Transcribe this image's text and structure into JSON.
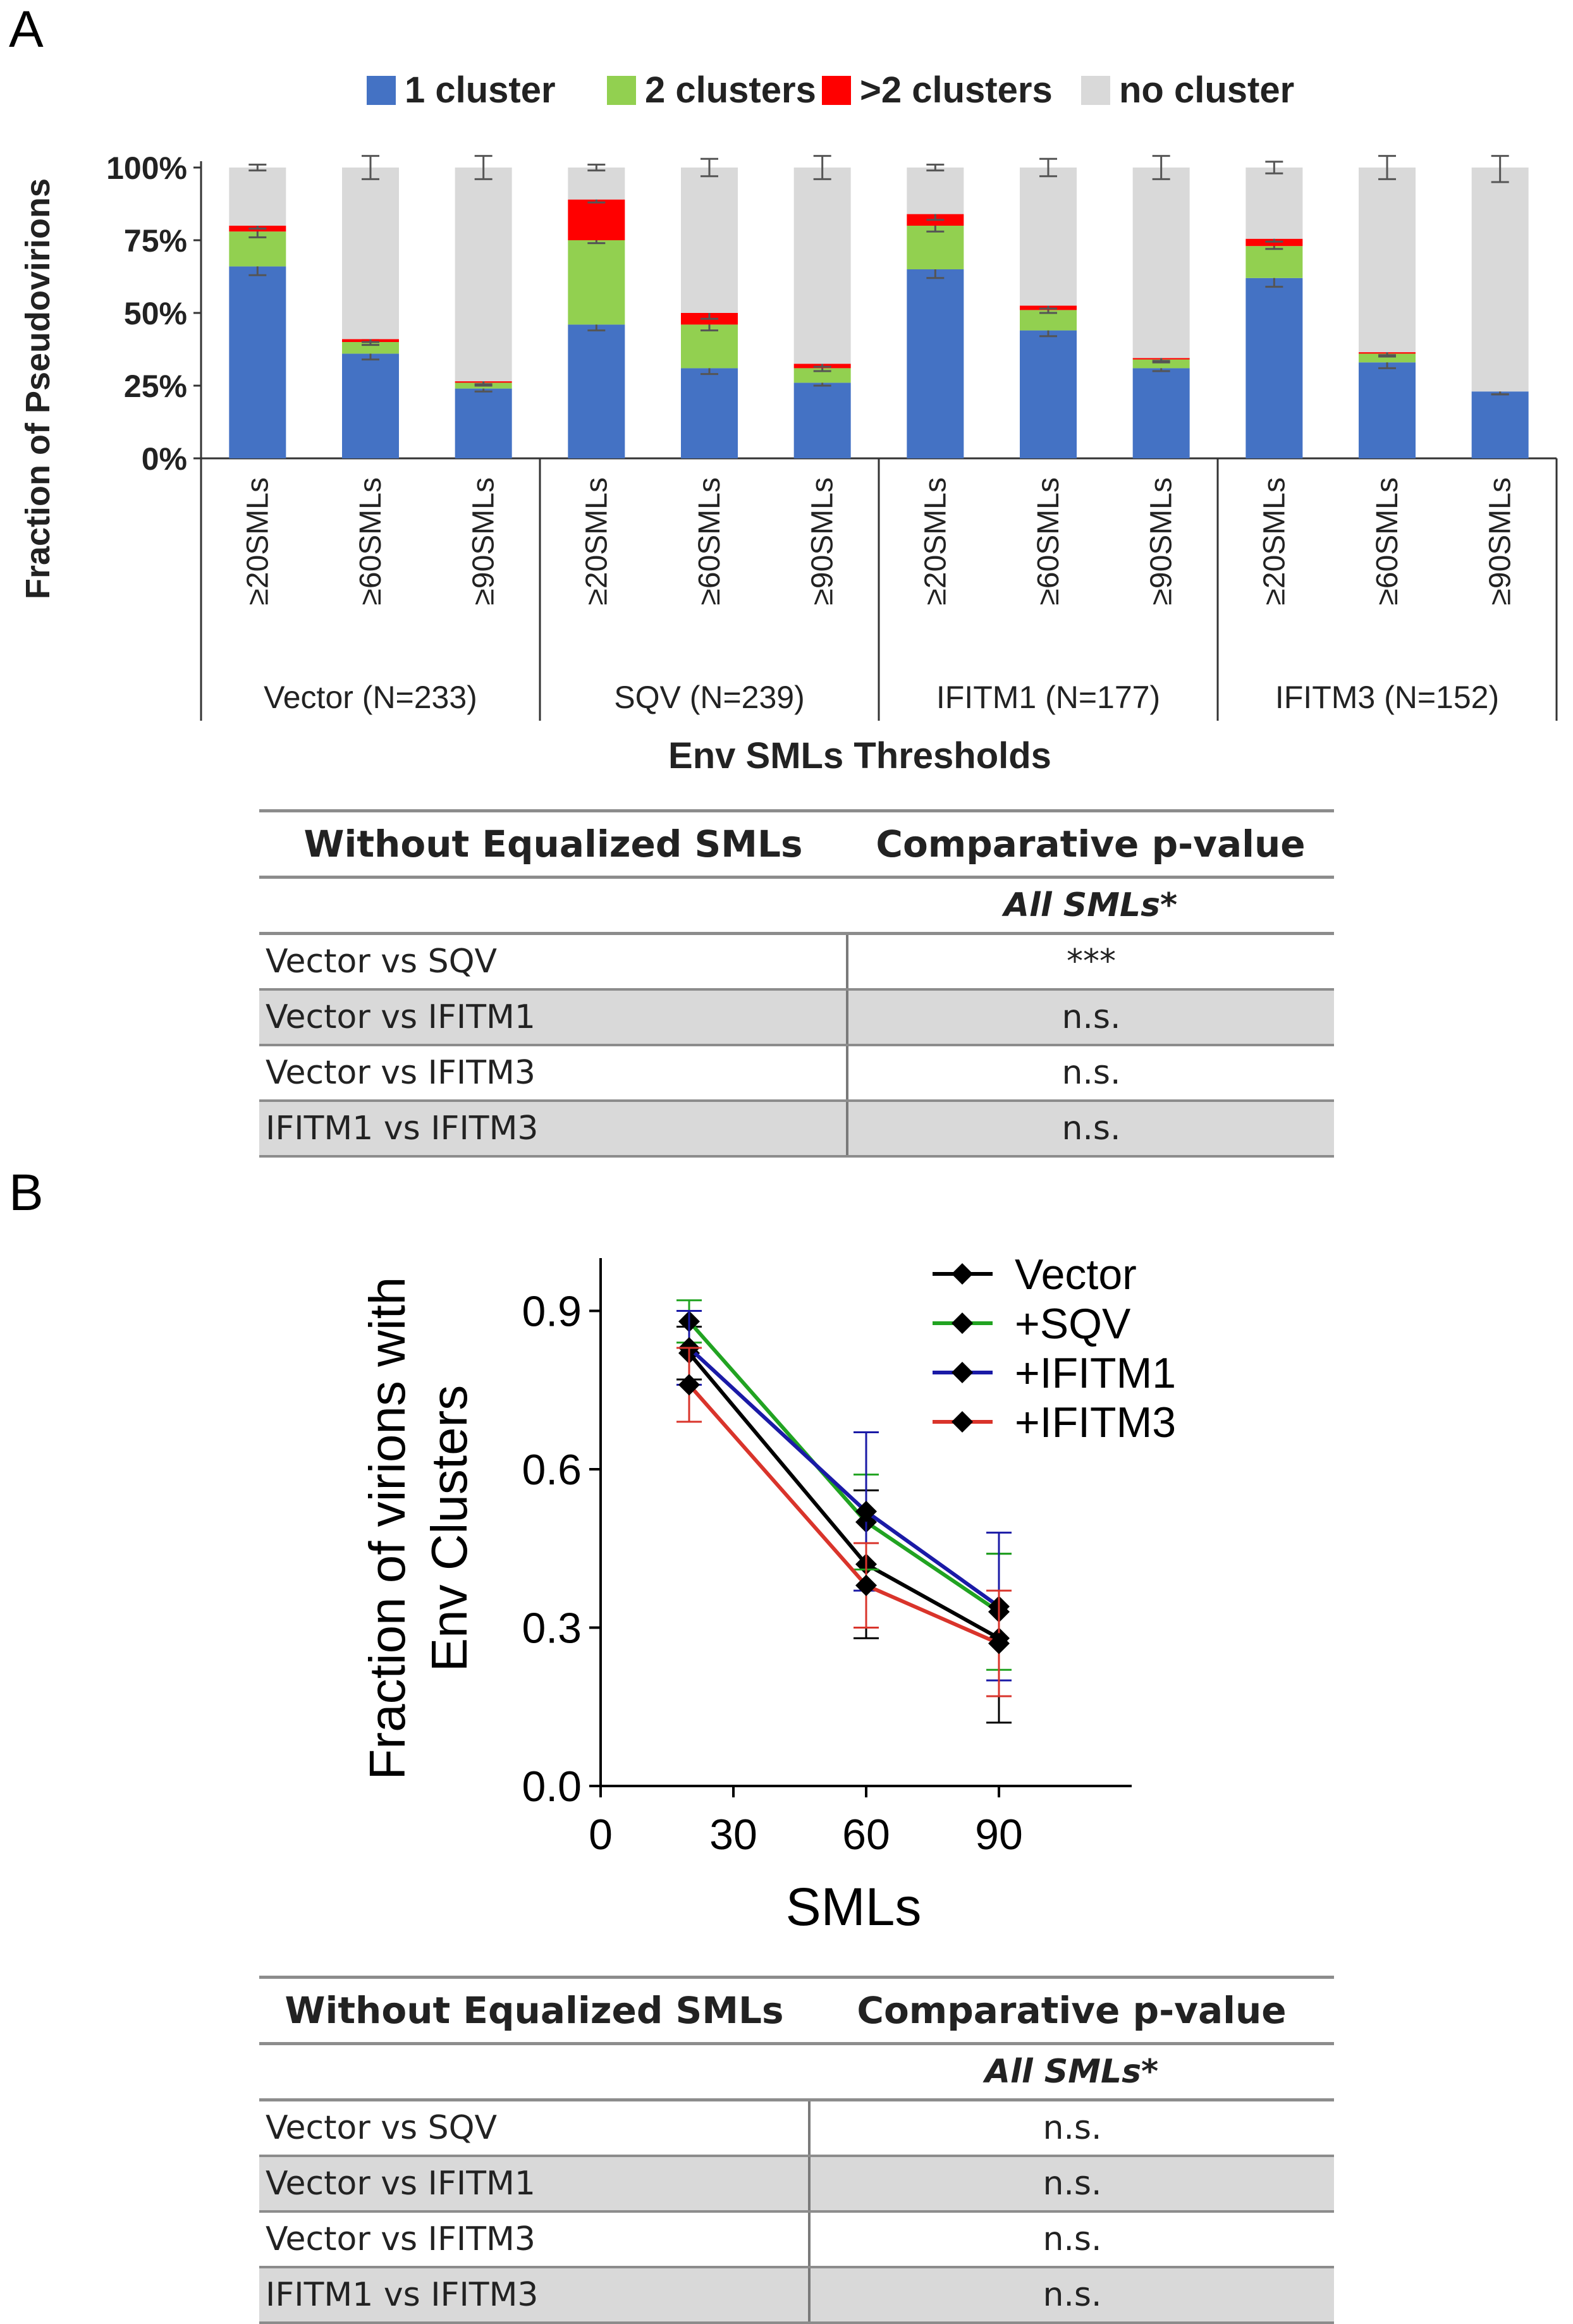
{
  "panel_a": {
    "label": "A",
    "chart_data": {
      "type": "bar",
      "stacked": true,
      "ylabel": "Fraction of Pseudovirions",
      "xlabel": "Env SMLs Thresholds",
      "ylim": [
        0,
        100
      ],
      "yticks": [
        "0%",
        "25%",
        "50%",
        "75%",
        "100%"
      ],
      "legend_position": "top",
      "groups": [
        "Vector (N=233)",
        "SQV (N=239)",
        "IFITM1 (N=177)",
        "IFITM3 (N=152)"
      ],
      "categories": [
        "≥20SMLs",
        "≥60SMLs",
        "≥90SMLs",
        "≥20SMLs",
        "≥60SMLs",
        "≥90SMLs",
        "≥20SMLs",
        "≥60SMLs",
        "≥90SMLs",
        "≥20SMLs",
        "≥60SMLs",
        "≥90SMLs"
      ],
      "series": [
        {
          "name": "1 cluster",
          "color": "#4472c4",
          "values": [
            66,
            36,
            24,
            46,
            31,
            26,
            65,
            44,
            31,
            62,
            33,
            23
          ]
        },
        {
          "name": "2 clusters",
          "color": "#92d050",
          "values": [
            12,
            4,
            2,
            29,
            15,
            5,
            15,
            7,
            3,
            11,
            3,
            0
          ]
        },
        {
          "name": ">2 clusters",
          "color": "#ff0000",
          "values": [
            2,
            1,
            0.5,
            14,
            4,
            1.5,
            4,
            1.5,
            0.5,
            2.5,
            0.5,
            0
          ]
        },
        {
          "name": "no cluster",
          "color": "#d9d9d9",
          "values": [
            20,
            59,
            73.5,
            11,
            50,
            67.5,
            16,
            47.5,
            65.5,
            24.5,
            63.5,
            77
          ]
        }
      ],
      "error": {
        "top": [
          1,
          4,
          4,
          1,
          3,
          4,
          1,
          3,
          4,
          2,
          4,
          5
        ],
        "stack_tops": [
          [
            3,
            2,
            1,
            2,
            2,
            1,
            3,
            2,
            1,
            3,
            2,
            1
          ],
          [
            2,
            1,
            1,
            1,
            2,
            1,
            2,
            1,
            1,
            1,
            1,
            1
          ],
          [
            1,
            1,
            1,
            1,
            2,
            1,
            2,
            1,
            1,
            1,
            1,
            0
          ]
        ]
      }
    },
    "table": {
      "header": [
        "Without Equalized SMLs",
        "Comparative p-value"
      ],
      "subheader": "All SMLs*",
      "rows": [
        [
          "Vector vs SQV",
          "***"
        ],
        [
          "Vector vs IFITM1",
          "n.s."
        ],
        [
          "Vector vs IFITM3",
          "n.s."
        ],
        [
          "IFITM1 vs IFITM3",
          "n.s."
        ]
      ]
    }
  },
  "panel_b": {
    "label": "B",
    "chart_data": {
      "type": "line",
      "xlabel": "SMLs",
      "ylabel_lines": [
        "Fraction of virions with",
        "Env Clusters"
      ],
      "xlim": [
        0,
        120
      ],
      "ylim": [
        0,
        1.0
      ],
      "xticks": [
        0,
        30,
        60,
        90
      ],
      "yticks": [
        0.0,
        0.3,
        0.6,
        0.9
      ],
      "ytick_labels": [
        "0.0",
        "0.3",
        "0.6",
        "0.9"
      ],
      "legend_position": "top-right",
      "x": [
        20,
        60,
        90
      ],
      "series": [
        {
          "name": "Vector",
          "color": "#000000",
          "values": [
            0.82,
            0.42,
            0.28
          ],
          "err": [
            0.05,
            0.14,
            0.16
          ]
        },
        {
          "name": "+SQV",
          "color": "#21a321",
          "values": [
            0.88,
            0.5,
            0.33
          ],
          "err": [
            0.04,
            0.09,
            0.11
          ]
        },
        {
          "name": "+IFITM1",
          "color": "#1a1aa6",
          "values": [
            0.83,
            0.52,
            0.34
          ],
          "err": [
            0.07,
            0.15,
            0.14
          ]
        },
        {
          "name": "+IFITM3",
          "color": "#d9342b",
          "values": [
            0.76,
            0.38,
            0.27
          ],
          "err": [
            0.07,
            0.08,
            0.1
          ]
        }
      ]
    },
    "table": {
      "header": [
        "Without Equalized SMLs",
        "Comparative p-value"
      ],
      "subheader": "All SMLs*",
      "rows": [
        [
          "Vector vs SQV",
          "n.s."
        ],
        [
          "Vector vs IFITM1",
          "n.s."
        ],
        [
          "Vector vs IFITM3",
          "n.s."
        ],
        [
          "IFITM1 vs IFITM3",
          "n.s."
        ]
      ]
    }
  }
}
